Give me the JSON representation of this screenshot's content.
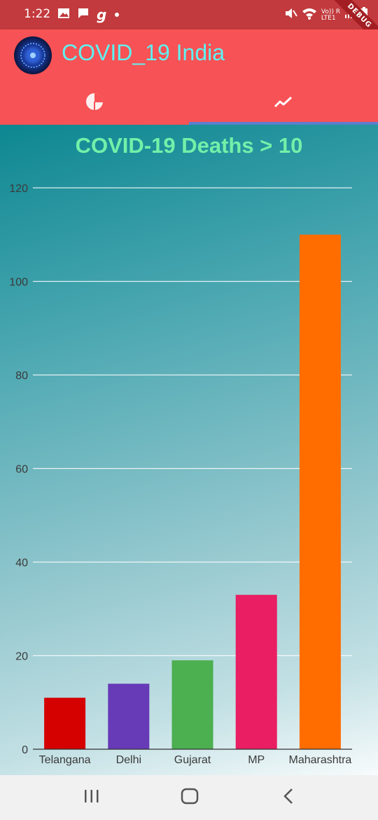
{
  "status_bar": {
    "time": "1:22",
    "icons_left": [
      "image-icon",
      "message-icon",
      "g-icon",
      "dot-icon"
    ],
    "icons_right": [
      "mute-icon",
      "wifi-icon",
      "lte-signal-icon",
      "battery-icon"
    ],
    "network_label": "Vo)) R\nLTE1",
    "debug_label": "DEBUG"
  },
  "app_bar": {
    "title": "COVID_19 India",
    "tabs": [
      {
        "name": "tab-pie-chart",
        "icon": "pie-chart-icon"
      },
      {
        "name": "tab-trend-chart",
        "icon": "trend-line-icon"
      }
    ],
    "selected_tab": 1,
    "colors": {
      "bar": "#f75255",
      "status": "#c23a3d",
      "title": "#5ff2f2",
      "indicator": "#5a7fd0"
    }
  },
  "chart_data": {
    "type": "bar",
    "title": "COVID-19 Deaths > 10",
    "categories": [
      "Telangana",
      "Delhi",
      "Gujarat",
      "MP",
      "Maharashtra"
    ],
    "values": [
      11,
      14,
      19,
      33,
      110
    ],
    "colors": [
      "#d50000",
      "#673ab7",
      "#4caf50",
      "#e91e63",
      "#ff6d00"
    ],
    "ylim": [
      0,
      120
    ],
    "yticks": [
      0,
      20,
      40,
      60,
      80,
      100,
      120
    ],
    "grid": true,
    "xlabel": "",
    "ylabel": ""
  },
  "nav_bar": {
    "buttons": [
      "recents-icon",
      "home-icon",
      "back-icon"
    ]
  }
}
